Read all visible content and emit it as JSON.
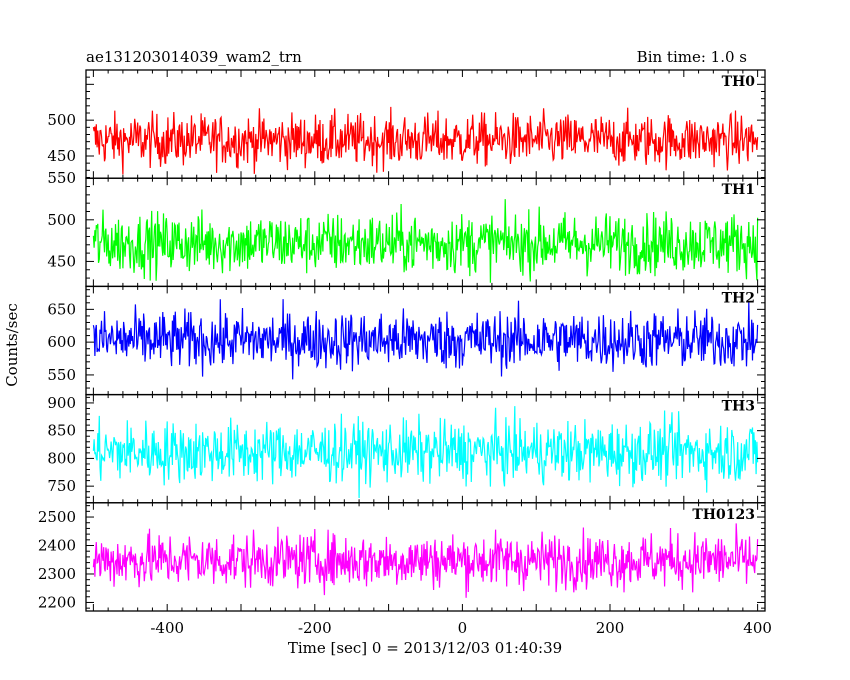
{
  "chart_data": {
    "type": "line",
    "title_left": "ae131203014039_wam2_trn",
    "title_right": "Bin time: 1.0 s",
    "xlabel": "Time [sec] 0 = 2013/12/03 01:40:39",
    "ylabel": "Counts/sec",
    "xlim": [
      -510,
      410
    ],
    "x_ticks": [
      -400,
      -200,
      0,
      200,
      400
    ],
    "x_start": -500,
    "x_end": 400,
    "bin": 1.0,
    "panels": [
      {
        "name": "TH0",
        "color": "#ff0000",
        "ylim": [
          419,
          570
        ],
        "yticks": [
          450,
          500
        ],
        "mean": 472,
        "amp": 36
      },
      {
        "name": "TH1",
        "color": "#00ff00",
        "ylim": [
          420,
          550
        ],
        "yticks": [
          450,
          500,
          550
        ],
        "mean": 472,
        "amp": 36
      },
      {
        "name": "TH2",
        "color": "#0000ff",
        "ylim": [
          520,
          685
        ],
        "yticks": [
          550,
          600,
          650
        ],
        "mean": 603,
        "amp": 44
      },
      {
        "name": "TH3",
        "color": "#00ffff",
        "ylim": [
          720,
          915
        ],
        "yticks": [
          750,
          800,
          850,
          900
        ],
        "mean": 812,
        "amp": 55
      },
      {
        "name": "TH0123",
        "color": "#ff00ff",
        "ylim": [
          2170,
          2550
        ],
        "yticks": [
          2200,
          2300,
          2400,
          2500
        ],
        "mean": 2348,
        "amp": 95
      }
    ]
  }
}
